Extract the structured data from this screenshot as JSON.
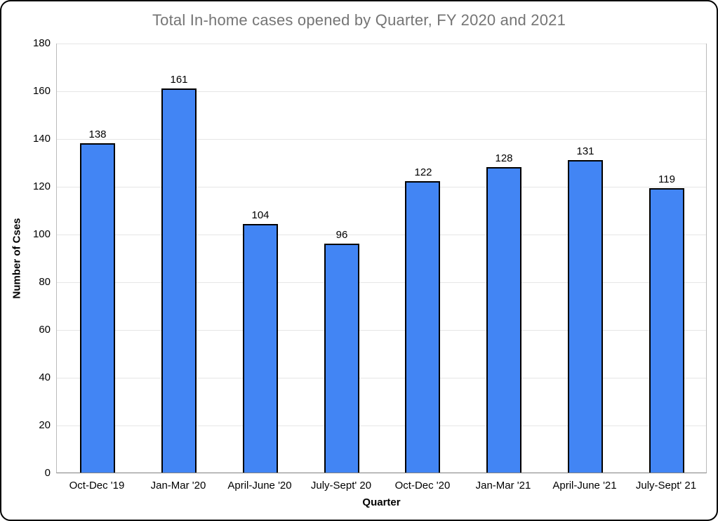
{
  "window": {
    "background": "#FFFFFF",
    "frame_border_color": "#000000"
  },
  "chart_data": {
    "type": "bar",
    "title": "Total In-home cases opened by Quarter, FY 2020 and 2021",
    "xlabel": "Quarter",
    "ylabel": "Number of Cses",
    "categories": [
      "Oct-Dec '19",
      "Jan-Mar '20",
      "April-June '20",
      "July-Sept' 20",
      "Oct-Dec '20",
      "Jan-Mar '21",
      "April-June '21",
      "July-Sept' 21"
    ],
    "values": [
      138,
      161,
      104,
      96,
      122,
      128,
      131,
      119
    ],
    "ylim": [
      0,
      180
    ],
    "yticks": [
      0,
      20,
      40,
      60,
      80,
      100,
      120,
      140,
      160,
      180
    ],
    "grid": true,
    "legend": "none",
    "value_labels_shown": true,
    "colors": {
      "bar_fill": "#4285F4",
      "bar_border": "#000000",
      "title": "#757575",
      "gridline": "#E6E6E6",
      "plot_border": "#BBBBBB",
      "axis_line": "#808080",
      "labels": "#000000"
    }
  }
}
